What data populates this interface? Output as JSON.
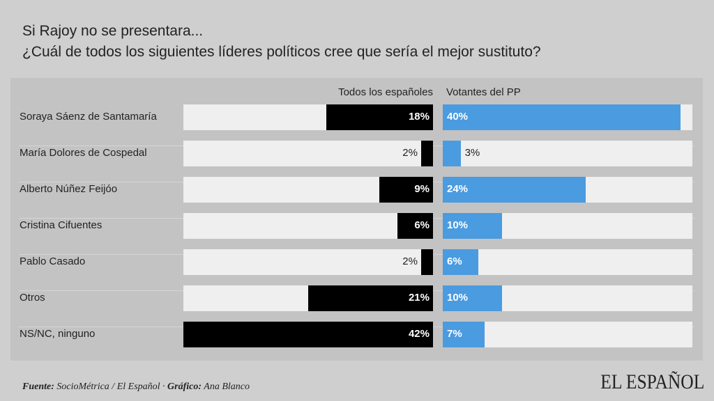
{
  "title_line1": "Si Rajoy no se presentara...",
  "title_line2": "¿Cuál de todos los siguientes líderes políticos cree que sería el mejor sustituto?",
  "footer": {
    "fuente_label": "Fuente:",
    "fuente": " SocioMétrica / El Español · ",
    "grafico_label": "Gráfico:",
    "grafico": " Ana Blanco"
  },
  "logo": "EL ESPAÑOL",
  "colors": {
    "left": "#000000",
    "right": "#4a9be0",
    "track": "#efefef"
  },
  "chart_data": {
    "type": "bar",
    "orientation": "horizontal",
    "categories": [
      "Soraya Sáenz de Santamaría",
      "María Dolores de Cospedal",
      "Alberto Núñez Feijóo",
      "Cristina Cifuentes",
      "Pablo Casado",
      "Otros",
      "NS/NC, ninguno"
    ],
    "series": [
      {
        "name": "Todos los españoles",
        "values": [
          18,
          2,
          9,
          6,
          2,
          21,
          42
        ]
      },
      {
        "name": "Votantes del PP",
        "values": [
          40,
          3,
          24,
          10,
          6,
          10,
          7
        ]
      }
    ],
    "unit": "%",
    "xlim": [
      0,
      42
    ]
  }
}
